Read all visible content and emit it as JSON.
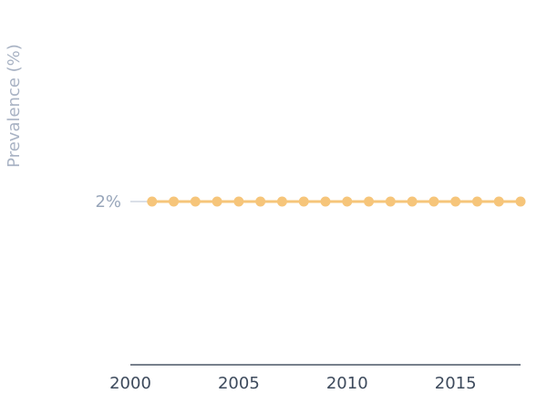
{
  "chart_data": {
    "type": "line",
    "ylabel": "Prevalence (%)",
    "x": [
      2001,
      2002,
      2003,
      2004,
      2005,
      2006,
      2007,
      2008,
      2009,
      2010,
      2011,
      2012,
      2013,
      2014,
      2015,
      2016,
      2017,
      2018
    ],
    "series": [
      {
        "values": [
          2,
          2,
          2,
          2,
          2,
          2,
          2,
          2,
          2,
          2,
          2,
          2,
          2,
          2,
          2,
          2,
          2,
          2
        ]
      }
    ],
    "xlim": [
      2000,
      2018
    ],
    "ylim": [
      0,
      4
    ],
    "x_ticks": [
      2000,
      2005,
      2010,
      2015
    ],
    "x_tick_labels": [
      "2000",
      "2005",
      "2010",
      "2015"
    ],
    "y_ticks": [
      2
    ],
    "y_tick_labels": [
      "2%"
    ],
    "grid": false,
    "colors": {
      "series": "#f6c57a",
      "axis": "#4a5667",
      "y_tick_line": "#cfd6e0"
    }
  }
}
